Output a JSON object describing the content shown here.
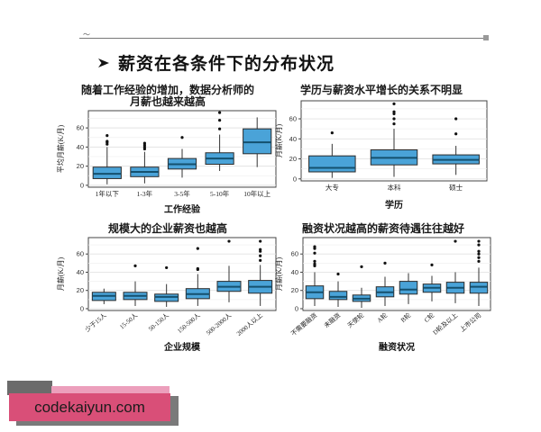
{
  "page": {
    "background": "#ffffff"
  },
  "header": {
    "rule_mark": "〜",
    "bullet_icon": "right-arrowhead",
    "title": "薪资在各条件下的分布状况"
  },
  "colors": {
    "box_fill": "#4aa3d8",
    "box_stroke": "#2b2b2b",
    "median_line": "#14506e",
    "whisker": "#333333",
    "outlier": "#111111",
    "panel_border": "#444444",
    "grid_major": "#e2e2e2",
    "grid_minor": "#f0f0f0",
    "watermark_pink": "#d94f78",
    "watermark_light_pink": "#ec9fbc",
    "watermark_gray": "#7a7a7a"
  },
  "watermark": {
    "text": "codekaiyun.com"
  },
  "chart_data": [
    {
      "id": "experience",
      "type": "boxplot",
      "title_lines": [
        "随着工作经验的增加，数据分析师的",
        "月薪也越来越高"
      ],
      "xlabel": "工作经验",
      "ylabel": "平均月薪(K/月)",
      "ylim": [
        -2,
        78
      ],
      "yticks": [
        0,
        20,
        40,
        60
      ],
      "grid": true,
      "rotate_labels": false,
      "categories": [
        "1年以下",
        "1-3年",
        "3-5年",
        "5-10年",
        "10年以上"
      ],
      "boxes": [
        {
          "low": 1,
          "q1": 7,
          "median": 12,
          "q3": 19,
          "high": 40,
          "outliers": [
            43,
            45,
            46,
            52
          ]
        },
        {
          "low": 2,
          "q1": 9,
          "median": 14,
          "q3": 19,
          "high": 35,
          "outliers": [
            38,
            40,
            42,
            44
          ]
        },
        {
          "low": 8,
          "q1": 17,
          "median": 22,
          "q3": 28,
          "high": 38,
          "outliers": [
            50
          ]
        },
        {
          "low": 15,
          "q1": 22,
          "median": 28,
          "q3": 34,
          "high": 53,
          "outliers": [
            59,
            68,
            76
          ]
        },
        {
          "low": 19,
          "q1": 33,
          "median": 45,
          "q3": 59,
          "high": 71,
          "outliers": []
        }
      ]
    },
    {
      "id": "education",
      "type": "boxplot",
      "title_lines": [
        "学历与薪资水平增长的关系不明显"
      ],
      "xlabel": "学历",
      "ylabel": "月薪(K/月)",
      "ylim": [
        -2,
        78
      ],
      "yticks": [
        0,
        20,
        40,
        60
      ],
      "grid": true,
      "rotate_labels": false,
      "categories": [
        "大专",
        "本科",
        "硕士"
      ],
      "boxes": [
        {
          "low": 1,
          "q1": 7,
          "median": 11,
          "q3": 23,
          "high": 35,
          "outliers": [
            46
          ]
        },
        {
          "low": 2,
          "q1": 14,
          "median": 21,
          "q3": 29,
          "high": 50,
          "outliers": [
            55,
            60,
            65,
            67,
            75
          ]
        },
        {
          "low": 4,
          "q1": 15,
          "median": 19,
          "q3": 24,
          "high": 33,
          "outliers": [
            45,
            60
          ]
        }
      ]
    },
    {
      "id": "size",
      "type": "boxplot",
      "title_lines": [
        "规模大的企业薪资也越高"
      ],
      "xlabel": "企业规模",
      "ylabel": "月薪(K/月)",
      "ylim": [
        -2,
        78
      ],
      "yticks": [
        0,
        20,
        40,
        60
      ],
      "grid": true,
      "rotate_labels": true,
      "categories": [
        "少于15人",
        "15-50人",
        "50-150人",
        "150-500人",
        "500-2000人",
        "2000人以上"
      ],
      "boxes": [
        {
          "low": 5,
          "q1": 9,
          "median": 14,
          "q3": 18,
          "high": 22,
          "outliers": []
        },
        {
          "low": 3,
          "q1": 10,
          "median": 14,
          "q3": 18,
          "high": 30,
          "outliers": [
            47
          ]
        },
        {
          "low": 2,
          "q1": 8,
          "median": 13,
          "q3": 16,
          "high": 27,
          "outliers": [
            45
          ]
        },
        {
          "low": 3,
          "q1": 11,
          "median": 16,
          "q3": 22,
          "high": 38,
          "outliers": [
            43,
            44,
            66
          ]
        },
        {
          "low": 7,
          "q1": 19,
          "median": 24,
          "q3": 30,
          "high": 47,
          "outliers": [
            74
          ]
        },
        {
          "low": 3,
          "q1": 17,
          "median": 24,
          "q3": 31,
          "high": 48,
          "outliers": [
            53,
            58,
            63,
            65,
            74
          ]
        }
      ]
    },
    {
      "id": "funding",
      "type": "boxplot",
      "title_lines": [
        "融资状况越高的薪资待遇往往越好"
      ],
      "xlabel": "融资状况",
      "ylabel": "月薪(K/月)",
      "ylim": [
        -2,
        78
      ],
      "yticks": [
        0,
        20,
        40,
        60
      ],
      "grid": true,
      "rotate_labels": true,
      "categories": [
        "不需要融资",
        "未融资",
        "天使轮",
        "A轮",
        "B轮",
        "C轮",
        "D轮及以上",
        "上市公司"
      ],
      "boxes": [
        {
          "low": 3,
          "q1": 11,
          "median": 18,
          "q3": 25,
          "high": 40,
          "outliers": [
            47,
            49,
            52,
            61,
            66,
            68
          ]
        },
        {
          "low": 2,
          "q1": 10,
          "median": 13,
          "q3": 19,
          "high": 30,
          "outliers": [
            38
          ]
        },
        {
          "low": 1,
          "q1": 8,
          "median": 11,
          "q3": 15,
          "high": 23,
          "outliers": [
            46
          ]
        },
        {
          "low": 3,
          "q1": 13,
          "median": 18,
          "q3": 24,
          "high": 35,
          "outliers": [
            50
          ]
        },
        {
          "low": 5,
          "q1": 16,
          "median": 21,
          "q3": 30,
          "high": 39,
          "outliers": []
        },
        {
          "low": 8,
          "q1": 18,
          "median": 23,
          "q3": 27,
          "high": 36,
          "outliers": [
            48
          ]
        },
        {
          "low": 6,
          "q1": 17,
          "median": 23,
          "q3": 29,
          "high": 40,
          "outliers": [
            74
          ]
        },
        {
          "low": 3,
          "q1": 17,
          "median": 24,
          "q3": 29,
          "high": 45,
          "outliers": [
            52,
            56,
            60,
            63,
            70,
            74
          ]
        }
      ]
    }
  ]
}
